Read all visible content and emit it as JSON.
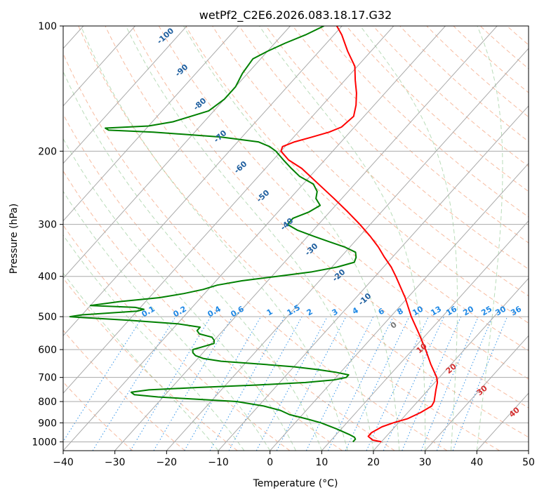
{
  "chart_data": {
    "type": "line",
    "subtype": "skew-T log-P sounding",
    "title": "wetPf2_C2E6.2026.083.18.17.G32",
    "xlabel": "Temperature (°C)",
    "ylabel": "Pressure (hPa)",
    "xlim": [
      -40,
      50
    ],
    "ylim": [
      1050,
      100
    ],
    "y_scale": "log",
    "grid": true,
    "x_ticks": [
      -40,
      -30,
      -20,
      -10,
      0,
      10,
      20,
      30,
      40,
      50
    ],
    "x_tick_labels": [
      "−40",
      "−30",
      "−20",
      "−10",
      "0",
      "10",
      "20",
      "30",
      "40",
      "50"
    ],
    "y_ticks": [
      1000,
      900,
      800,
      700,
      600,
      500,
      400,
      300,
      200,
      100
    ],
    "y_tick_labels": [
      "1000",
      "900",
      "800",
      "700",
      "600",
      "500",
      "400",
      "300",
      "200",
      "100"
    ],
    "series": [
      {
        "role": "temperature",
        "color": "#ff0000",
        "points": [
          [
            1000,
            20
          ],
          [
            990,
            18
          ],
          [
            970,
            16.5
          ],
          [
            950,
            16.5
          ],
          [
            920,
            17.5
          ],
          [
            900,
            19
          ],
          [
            880,
            21
          ],
          [
            850,
            22.5
          ],
          [
            820,
            23.5
          ],
          [
            800,
            23.2
          ],
          [
            750,
            21.5
          ],
          [
            720,
            20.5
          ],
          [
            700,
            19.5
          ],
          [
            650,
            16
          ],
          [
            600,
            12.5
          ],
          [
            550,
            8.5
          ],
          [
            500,
            4
          ],
          [
            450,
            -0.5
          ],
          [
            400,
            -6
          ],
          [
            380,
            -8.5
          ],
          [
            360,
            -11.5
          ],
          [
            340,
            -14.5
          ],
          [
            320,
            -18
          ],
          [
            300,
            -22
          ],
          [
            280,
            -26.5
          ],
          [
            260,
            -31.5
          ],
          [
            240,
            -37
          ],
          [
            220,
            -43
          ],
          [
            210,
            -47
          ],
          [
            200,
            -50
          ],
          [
            195,
            -50.5
          ],
          [
            190,
            -49
          ],
          [
            185,
            -46.5
          ],
          [
            180,
            -44
          ],
          [
            175,
            -42.5
          ],
          [
            165,
            -42
          ],
          [
            155,
            -43.5
          ],
          [
            145,
            -45.5
          ],
          [
            135,
            -48
          ],
          [
            125,
            -50.5
          ],
          [
            115,
            -54.5
          ],
          [
            105,
            -58.5
          ],
          [
            100,
            -61
          ]
        ]
      },
      {
        "role": "dewpoint",
        "color": "#008000",
        "points": [
          [
            1000,
            14.5
          ],
          [
            985,
            14.5
          ],
          [
            975,
            14
          ],
          [
            960,
            12.5
          ],
          [
            930,
            9
          ],
          [
            900,
            5
          ],
          [
            880,
            1.5
          ],
          [
            860,
            -2.5
          ],
          [
            840,
            -5
          ],
          [
            820,
            -9
          ],
          [
            800,
            -15
          ],
          [
            790,
            -23
          ],
          [
            780,
            -31
          ],
          [
            770,
            -36
          ],
          [
            760,
            -37
          ],
          [
            750,
            -34
          ],
          [
            740,
            -25
          ],
          [
            730,
            -14
          ],
          [
            720,
            -5
          ],
          [
            710,
            0
          ],
          [
            700,
            2
          ],
          [
            690,
            2
          ],
          [
            680,
            -1
          ],
          [
            670,
            -5
          ],
          [
            660,
            -10
          ],
          [
            650,
            -17
          ],
          [
            640,
            -25
          ],
          [
            630,
            -29
          ],
          [
            620,
            -31
          ],
          [
            610,
            -32
          ],
          [
            600,
            -32.5
          ],
          [
            590,
            -31
          ],
          [
            580,
            -29.5
          ],
          [
            570,
            -30
          ],
          [
            560,
            -31
          ],
          [
            550,
            -34
          ],
          [
            540,
            -35
          ],
          [
            530,
            -35
          ],
          [
            520,
            -40
          ],
          [
            510,
            -50
          ],
          [
            502,
            -60
          ],
          [
            500,
            -62
          ],
          [
            495,
            -60
          ],
          [
            490,
            -55
          ],
          [
            485,
            -50
          ],
          [
            480,
            -49
          ],
          [
            475,
            -51
          ],
          [
            470,
            -60
          ],
          [
            460,
            -55
          ],
          [
            450,
            -48
          ],
          [
            440,
            -44
          ],
          [
            430,
            -41
          ],
          [
            420,
            -39
          ],
          [
            410,
            -35
          ],
          [
            400,
            -29
          ],
          [
            390,
            -23
          ],
          [
            380,
            -19
          ],
          [
            370,
            -16.5
          ],
          [
            360,
            -17
          ],
          [
            350,
            -18
          ],
          [
            340,
            -21
          ],
          [
            330,
            -25
          ],
          [
            320,
            -29
          ],
          [
            310,
            -33
          ],
          [
            300,
            -36
          ],
          [
            290,
            -36
          ],
          [
            280,
            -34
          ],
          [
            270,
            -33
          ],
          [
            260,
            -35
          ],
          [
            250,
            -36
          ],
          [
            240,
            -38
          ],
          [
            230,
            -42
          ],
          [
            220,
            -45
          ],
          [
            210,
            -48
          ],
          [
            200,
            -51
          ],
          [
            195,
            -53
          ],
          [
            190,
            -56
          ],
          [
            185,
            -64
          ],
          [
            180,
            -78
          ],
          [
            178,
            -87
          ],
          [
            176,
            -88
          ],
          [
            174,
            -80
          ],
          [
            170,
            -76
          ],
          [
            160,
            -71
          ],
          [
            150,
            -70
          ],
          [
            140,
            -70
          ],
          [
            130,
            -71
          ],
          [
            120,
            -71.5
          ],
          [
            115,
            -70
          ],
          [
            110,
            -68
          ],
          [
            105,
            -65.5
          ],
          [
            100,
            -63.5
          ]
        ]
      }
    ],
    "dry_adiabat_labels": [
      "0",
      "10",
      "20",
      "30",
      "40"
    ],
    "moist_adiabat_labels": [
      "-100",
      "-90",
      "-80",
      "-70",
      "-60",
      "-50",
      "-40",
      "-30",
      "-20",
      "-10"
    ],
    "mixing_ratio_labels": [
      "0.1",
      "0.2",
      "0.4",
      "0.6",
      "1",
      "1.5",
      "2",
      "3",
      "4",
      "6",
      "8",
      "10",
      "13",
      "16",
      "20",
      "25",
      "30",
      "36"
    ],
    "mixing_ratio_values": [
      0.1,
      0.2,
      0.4,
      0.6,
      1,
      1.5,
      2,
      3,
      4,
      6,
      8,
      10,
      13,
      16,
      20,
      25,
      30,
      36
    ]
  }
}
